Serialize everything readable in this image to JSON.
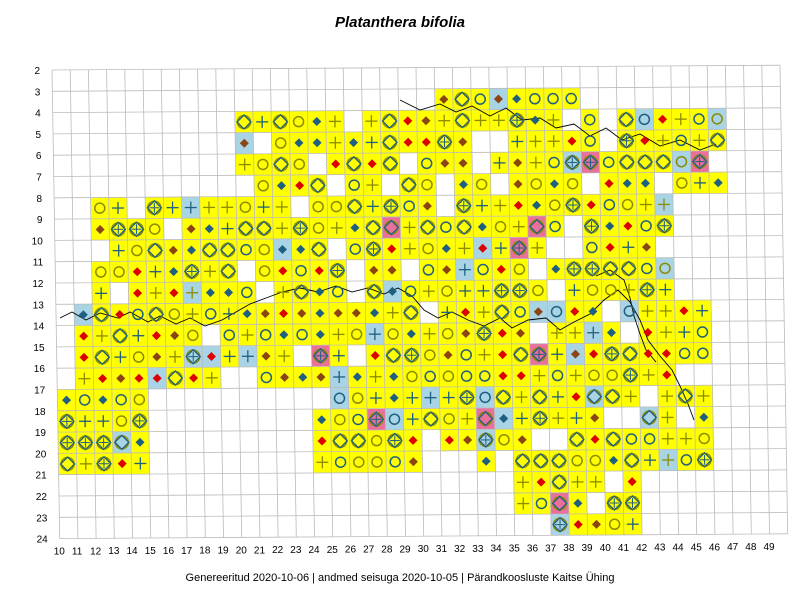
{
  "title": "Platanthera bifolia",
  "footer": {
    "generated": "Genereeritud 2020-10-06",
    "data_state": "andmed seisuga 2020-10-05",
    "publisher": "Pärandkoosluste Kaitse Ühing",
    "separator": "|"
  },
  "colors": {
    "occupied_cell": "#ffff00",
    "recent_cell": "#a8d4e6",
    "new_cell": "#e8709a",
    "green_cell": "#90ee60",
    "grid_line": "#bbbbbb",
    "coast_line": "#000000",
    "marker_blue": "#1f5f7f",
    "marker_brown": "#8b4513",
    "marker_red": "#dd0000",
    "marker_olive": "#8b8b00"
  },
  "axes": {
    "x_ticks": [
      "10",
      "11",
      "12",
      "13",
      "14",
      "15",
      "16",
      "17",
      "18",
      "19",
      "20",
      "21",
      "22",
      "23",
      "24",
      "25",
      "26",
      "27",
      "28",
      "29",
      "30",
      "31",
      "32",
      "33",
      "34",
      "35",
      "36",
      "37",
      "38",
      "39",
      "40",
      "41",
      "42",
      "43",
      "44",
      "45",
      "46",
      "47",
      "48",
      "49"
    ],
    "y_ticks": [
      "2",
      "3",
      "4",
      "5",
      "6",
      "7",
      "8",
      "9",
      "10",
      "11",
      "12",
      "13",
      "14",
      "15",
      "16",
      "17",
      "18",
      "19",
      "20",
      "21",
      "22",
      "23",
      "24"
    ]
  },
  "marker_types": [
    "blue-diamond",
    "brown-diamond",
    "red-diamond",
    "olive-circle",
    "blue-circle",
    "blue-cross",
    "olive-cross",
    "diamond-in-circle",
    "crossed-diamond-in-circle"
  ]
}
